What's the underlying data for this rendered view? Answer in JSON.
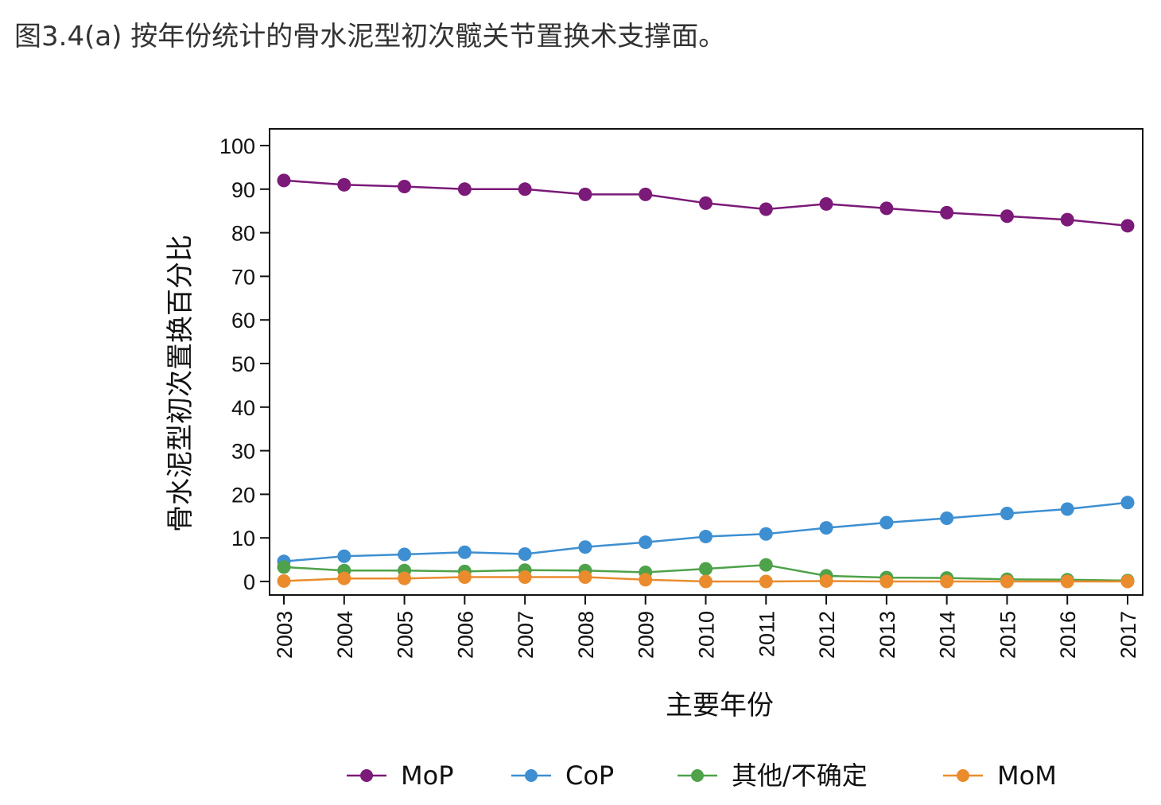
{
  "page": {
    "title": "图3.4(a) 按年份统计的骨水泥型初次髋关节置换术支撑面。"
  },
  "chart_data": {
    "type": "line",
    "x": [
      "2003",
      "2004",
      "2005",
      "2006",
      "2007",
      "2008",
      "2009",
      "2010",
      "2011",
      "2012",
      "2013",
      "2014",
      "2015",
      "2016",
      "2017"
    ],
    "xlabel": "主要年份",
    "ylabel": "骨水泥型初次置换百分比",
    "ylim": [
      -3,
      104
    ],
    "yticks": [
      0,
      10,
      20,
      30,
      40,
      50,
      60,
      70,
      80,
      90,
      100
    ],
    "grid": false,
    "legend_position": "bottom",
    "series": [
      {
        "name": "MoP",
        "color": "#7b1a78",
        "values": [
          92.0,
          91.0,
          90.6,
          90.0,
          90.0,
          88.8,
          88.8,
          86.8,
          85.4,
          86.6,
          85.6,
          84.6,
          83.8,
          83.0,
          81.6
        ]
      },
      {
        "name": "CoP",
        "color": "#3d8fd1",
        "values": [
          4.6,
          5.8,
          6.2,
          6.7,
          6.3,
          7.9,
          9.0,
          10.3,
          10.9,
          12.3,
          13.5,
          14.5,
          15.6,
          16.6,
          18.1
        ]
      },
      {
        "name": "其他/不确定",
        "color": "#4ea24a",
        "values": [
          3.3,
          2.5,
          2.5,
          2.3,
          2.6,
          2.5,
          2.1,
          2.9,
          3.8,
          1.3,
          0.9,
          0.8,
          0.5,
          0.4,
          0.2
        ]
      },
      {
        "name": "MoM",
        "color": "#ea8c2d",
        "values": [
          0.1,
          0.7,
          0.7,
          1.0,
          1.0,
          1.0,
          0.4,
          0.0,
          0.0,
          0.1,
          0.0,
          0.0,
          0.0,
          0.0,
          0.0
        ]
      }
    ]
  }
}
